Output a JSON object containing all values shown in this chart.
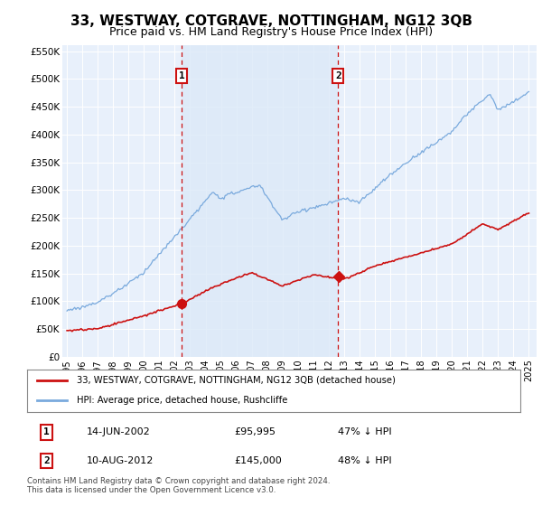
{
  "title": "33, WESTWAY, COTGRAVE, NOTTINGHAM, NG12 3QB",
  "subtitle": "Price paid vs. HM Land Registry's House Price Index (HPI)",
  "title_fontsize": 11,
  "subtitle_fontsize": 9,
  "bg_color": "#dce9f8",
  "plot_bg_color": "#e8f0fb",
  "grid_color": "#c8d8ee",
  "hpi_color": "#7aaadd",
  "price_color": "#cc1111",
  "sale1_date": "14-JUN-2002",
  "sale1_price": "£95,995",
  "sale1_hpi": "47% ↓ HPI",
  "sale2_date": "10-AUG-2012",
  "sale2_price": "£145,000",
  "sale2_hpi": "48% ↓ HPI",
  "legend_line1": "33, WESTWAY, COTGRAVE, NOTTINGHAM, NG12 3QB (detached house)",
  "legend_line2": "HPI: Average price, detached house, Rushcliffe",
  "footer": "Contains HM Land Registry data © Crown copyright and database right 2024.\nThis data is licensed under the Open Government Licence v3.0.",
  "sale1_x": 2002.46,
  "sale2_x": 2012.61,
  "sale1_price_val": 95995,
  "sale2_price_val": 145000
}
